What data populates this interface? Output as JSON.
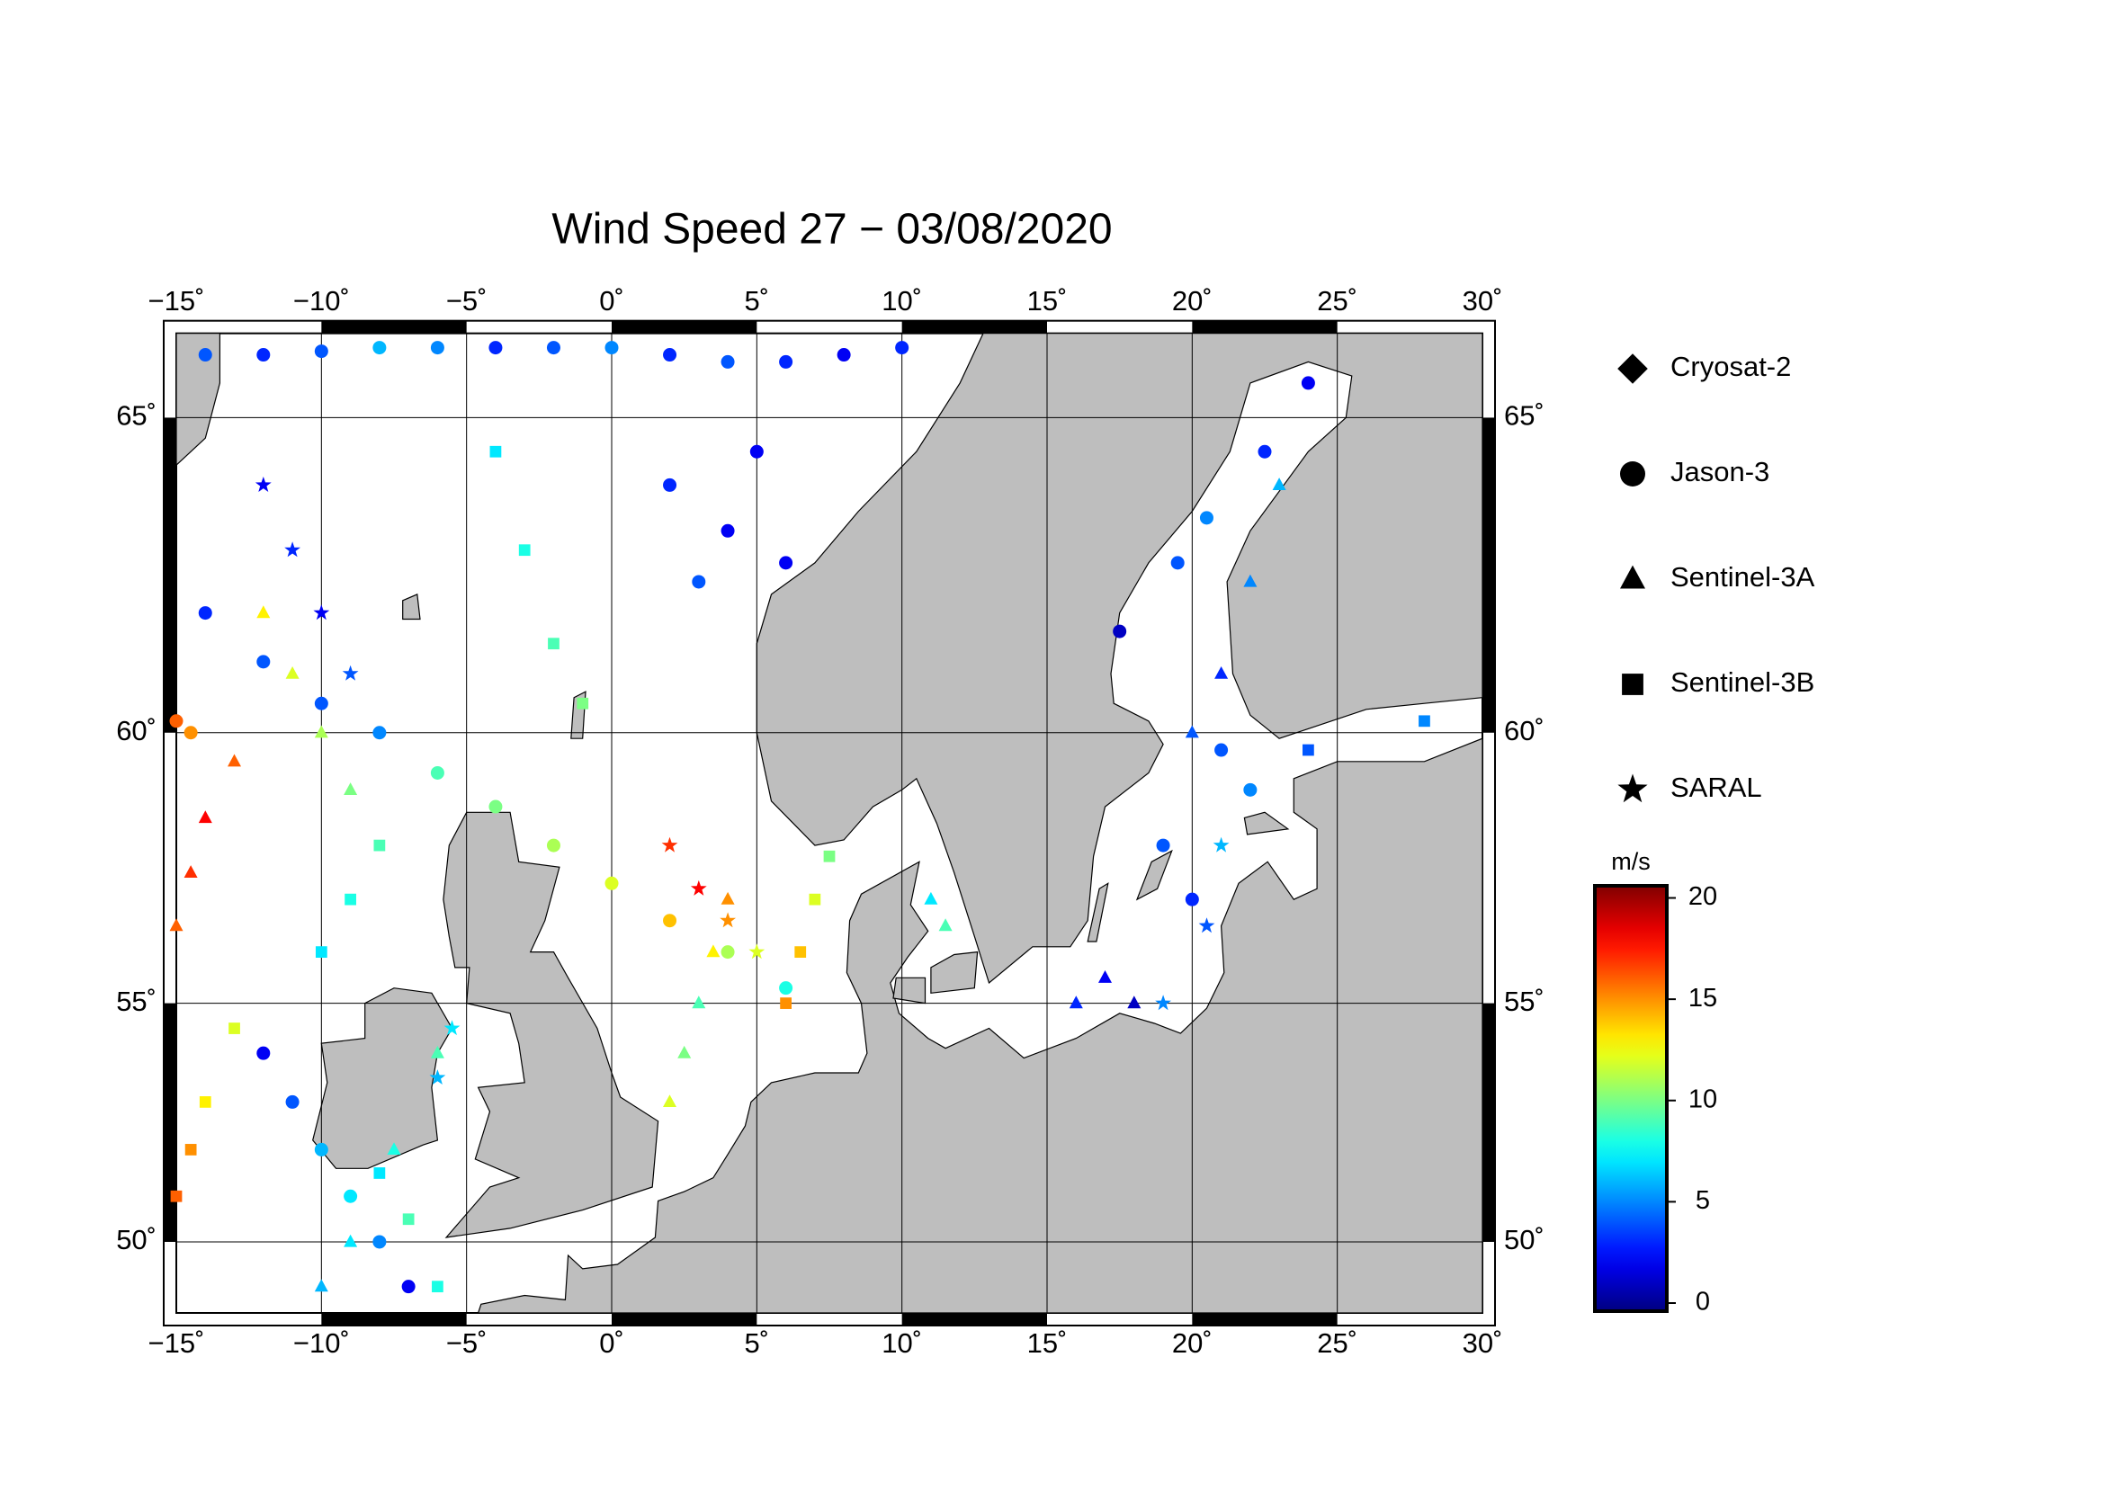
{
  "chart_data": {
    "type": "scatter",
    "projection": "mercator",
    "title": "Wind Speed 27 − 03/08/2020",
    "xlim": [
      -15,
      30
    ],
    "ylim": [
      48.4,
      66.2
    ],
    "xticks": [
      {
        "value": -15,
        "label": "−15˚"
      },
      {
        "value": -10,
        "label": "−10˚"
      },
      {
        "value": -5,
        "label": "−5˚"
      },
      {
        "value": 0,
        "label": "0˚"
      },
      {
        "value": 5,
        "label": "5˚"
      },
      {
        "value": 10,
        "label": "10˚"
      },
      {
        "value": 15,
        "label": "15˚"
      },
      {
        "value": 20,
        "label": "20˚"
      },
      {
        "value": 25,
        "label": "25˚"
      },
      {
        "value": 30,
        "label": "30˚"
      }
    ],
    "yticks": [
      {
        "value": 50,
        "label": "50˚"
      },
      {
        "value": 55,
        "label": "55˚"
      },
      {
        "value": 60,
        "label": "60˚"
      },
      {
        "value": 65,
        "label": "65˚"
      }
    ],
    "grid": true,
    "colormap": "jet",
    "clim": [
      -0.4,
      20.6
    ],
    "cticks": [
      0,
      5,
      10,
      15,
      20
    ],
    "colorbar_label": "m/s",
    "legend": "right",
    "series": [
      {
        "name": "Cryosat-2",
        "marker": "diamond",
        "x": [],
        "y": [],
        "values": []
      },
      {
        "name": "Jason-3",
        "marker": "circle",
        "x": [
          -14,
          -12,
          -10,
          -8,
          -6,
          -4,
          -2,
          0,
          2,
          4,
          6,
          8,
          10,
          -14,
          -12,
          -10,
          -8,
          -6,
          -4,
          -2,
          0,
          2,
          4,
          6,
          2,
          4,
          6,
          3,
          5,
          -7,
          -8,
          -9,
          -10,
          -11,
          -12,
          19,
          20,
          21,
          22,
          19.5,
          20.5,
          22.5,
          24,
          17.5,
          -15,
          -14.5
        ],
        "y": [
          65.9,
          65.9,
          65.95,
          66,
          66,
          66,
          66,
          66,
          65.9,
          65.8,
          65.8,
          65.9,
          66,
          62,
          61.2,
          60.5,
          60,
          59.3,
          58.7,
          58,
          57.3,
          56.6,
          56,
          55.3,
          64,
          63.3,
          62.8,
          62.5,
          64.5,
          49,
          50,
          51,
          52,
          53,
          54,
          58,
          57,
          59.7,
          59,
          62.8,
          63.5,
          64.5,
          65.5,
          61.7,
          60.2,
          60
        ],
        "values": [
          4,
          3,
          4,
          6,
          5,
          3,
          4,
          5,
          3,
          4,
          3,
          2,
          3,
          3,
          4,
          4,
          5,
          9,
          10,
          11,
          12,
          14,
          11,
          8,
          3,
          2,
          2,
          4,
          2,
          2,
          5,
          7,
          6,
          4,
          2,
          4,
          3,
          4,
          5,
          4,
          5,
          3,
          2,
          1,
          16,
          15
        ]
      },
      {
        "name": "Sentinel-3A",
        "marker": "triangle",
        "x": [
          -15,
          -14.5,
          -14,
          -13,
          2,
          2.5,
          3,
          3.5,
          4,
          -10,
          -9,
          -7.5,
          -6,
          16,
          17,
          18,
          20,
          21,
          22,
          23,
          11,
          11.5,
          -12,
          -11,
          -10,
          -9
        ],
        "y": [
          56.5,
          57.5,
          58.5,
          59.5,
          53,
          54,
          55,
          56,
          57,
          49,
          50,
          52,
          54,
          55,
          55.5,
          55,
          60,
          61,
          62.5,
          64,
          57,
          56.5,
          62,
          61,
          60,
          59
        ],
        "values": [
          16,
          17,
          18,
          16,
          12,
          10,
          9,
          13,
          15,
          6,
          7,
          8,
          9,
          3,
          2,
          1,
          4,
          3,
          5,
          6,
          7,
          9,
          13,
          12,
          11,
          10
        ]
      },
      {
        "name": "Sentinel-3B",
        "marker": "square",
        "x": [
          -15,
          -14.5,
          -14,
          -13,
          6,
          6.5,
          7,
          7.5,
          -4,
          -3,
          -2,
          -1,
          -8,
          -9,
          -10,
          28,
          24,
          -6,
          -7,
          -8
        ],
        "y": [
          51,
          52,
          53,
          54.5,
          55,
          56,
          57,
          57.8,
          64.5,
          63,
          61.5,
          60.5,
          58,
          57,
          56,
          60.2,
          59.7,
          49,
          50.5,
          51.5
        ],
        "values": [
          16,
          15,
          13,
          12,
          15,
          14,
          12,
          10,
          7,
          8,
          9,
          10,
          9,
          8,
          7,
          5,
          4,
          8,
          9,
          7
        ]
      },
      {
        "name": "SARAL",
        "marker": "star",
        "x": [
          2,
          3,
          4,
          5,
          -12,
          -11,
          -10,
          -9,
          19,
          20.5,
          21,
          -6,
          -5.5
        ],
        "y": [
          58,
          57.2,
          56.6,
          56,
          64,
          63,
          62,
          61,
          55,
          56.5,
          58,
          53.5,
          54.5
        ],
        "values": [
          17,
          18,
          15,
          12,
          2,
          3,
          2,
          4,
          5,
          4,
          6,
          6,
          7
        ]
      }
    ]
  }
}
